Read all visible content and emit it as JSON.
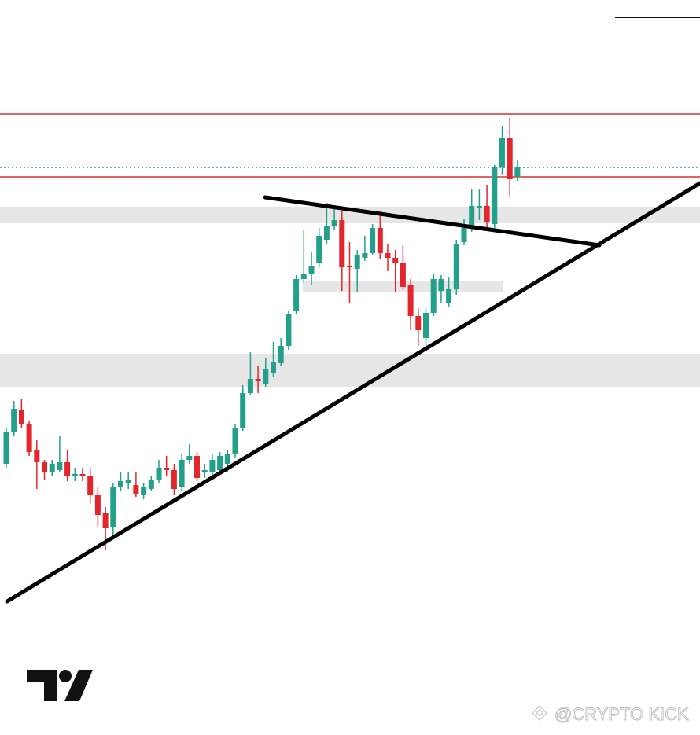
{
  "chart_data": {
    "type": "candlestick",
    "categories": [
      null,
      null,
      null,
      null,
      null,
      null,
      null,
      null,
      null,
      null,
      null,
      null,
      null,
      null,
      null,
      null,
      null,
      null,
      null,
      null,
      null,
      null,
      null,
      null,
      null,
      null,
      null,
      null,
      null,
      null,
      null,
      null,
      null,
      null,
      null,
      null,
      null,
      null,
      null,
      null,
      null,
      null,
      null,
      null,
      null,
      null,
      null,
      null,
      null,
      null,
      null,
      null,
      null,
      null,
      null,
      null,
      null,
      null,
      null,
      null,
      null,
      null,
      null,
      null,
      null,
      null,
      null,
      null
    ],
    "open": [
      34.5,
      38.5,
      41.3,
      39.5,
      36.2,
      34.7,
      33.5,
      33.7,
      34.7,
      33,
      33.2,
      33,
      30.5,
      28.3,
      26.5,
      31.5,
      32,
      31.8,
      30.5,
      31.3,
      32.5,
      34,
      33.7,
      31.5,
      35,
      35.5,
      33.5,
      33.5,
      33.7,
      34.5,
      35.7,
      39,
      43.5,
      45.3,
      44.7,
      46,
      47.3,
      49.5,
      54,
      58,
      58.7,
      60,
      63,
      64.7,
      65.5,
      59.7,
      59.3,
      60.7,
      61.3,
      64.5,
      61.3,
      60.7,
      60,
      57.3,
      53.3,
      50.5,
      53.7,
      56.5,
      55,
      56.7,
      62.7,
      64.5,
      67.1,
      67.3,
      65,
      72.3,
      76,
      71
    ],
    "high": [
      39,
      42.5,
      42.7,
      40,
      37.5,
      35,
      35,
      38,
      36.2,
      34,
      34,
      34,
      31.5,
      29,
      32,
      33.5,
      33.5,
      33.5,
      32,
      33,
      35,
      35.5,
      34.5,
      35.7,
      37,
      36,
      34.5,
      35.7,
      36,
      36.3,
      39.5,
      44.5,
      48.7,
      47,
      48,
      50,
      50.5,
      54,
      58.5,
      64.3,
      61.5,
      64.5,
      67.7,
      67.3,
      66.7,
      62.7,
      61.7,
      63.5,
      65,
      66.7,
      62.5,
      61.7,
      62.3,
      58,
      54.3,
      54.3,
      58.7,
      58.5,
      58.3,
      63,
      65.7,
      69.5,
      69.5,
      70,
      72.5,
      77.5,
      78.5,
      73.2
    ],
    "low": [
      34,
      38,
      39,
      35.5,
      31.3,
      32.5,
      33,
      33.5,
      32.3,
      32.3,
      32.3,
      29.5,
      26.5,
      23.5,
      25.5,
      31,
      31.3,
      30.3,
      30,
      31,
      32,
      33,
      30.5,
      31,
      34.5,
      32.3,
      32.7,
      33,
      33.5,
      33.5,
      35.3,
      38.7,
      43.2,
      43.5,
      44.3,
      45.5,
      47,
      49,
      53.5,
      57.5,
      57.3,
      59.5,
      62.5,
      64.3,
      56.5,
      55,
      56.3,
      60.3,
      61,
      60.5,
      59,
      56.3,
      56.7,
      51.5,
      49.5,
      49.3,
      53.3,
      55,
      54.5,
      56,
      62.3,
      64,
      65.5,
      64.5,
      64.5,
      71.3,
      68.5,
      70.5
    ],
    "close": [
      38.5,
      41.5,
      39.5,
      36,
      34.7,
      33.5,
      34.5,
      34.7,
      33,
      33.2,
      33,
      30.5,
      28,
      26.3,
      31.5,
      32.3,
      32.5,
      30.7,
      31.5,
      32.5,
      34,
      33.7,
      31.3,
      35,
      35.5,
      32.7,
      33.7,
      35,
      35.5,
      35.7,
      39,
      43.5,
      45.3,
      45,
      46.5,
      47.5,
      49.5,
      53.5,
      58,
      58.7,
      59.7,
      63.5,
      64.7,
      65.5,
      59.5,
      59.5,
      61,
      61.3,
      64.5,
      61.3,
      60.7,
      60,
      57,
      53.3,
      51.5,
      53.7,
      58,
      58,
      56.7,
      62.5,
      64.5,
      67.3,
      67.3,
      65.3,
      72.3,
      76,
      70.7,
      72.2
    ],
    "up_color": "#22a08a",
    "down_color": "#e3262c",
    "ylim": [
      0,
      93.5
    ],
    "watermark": "@CRYPTO KICK"
  }
}
